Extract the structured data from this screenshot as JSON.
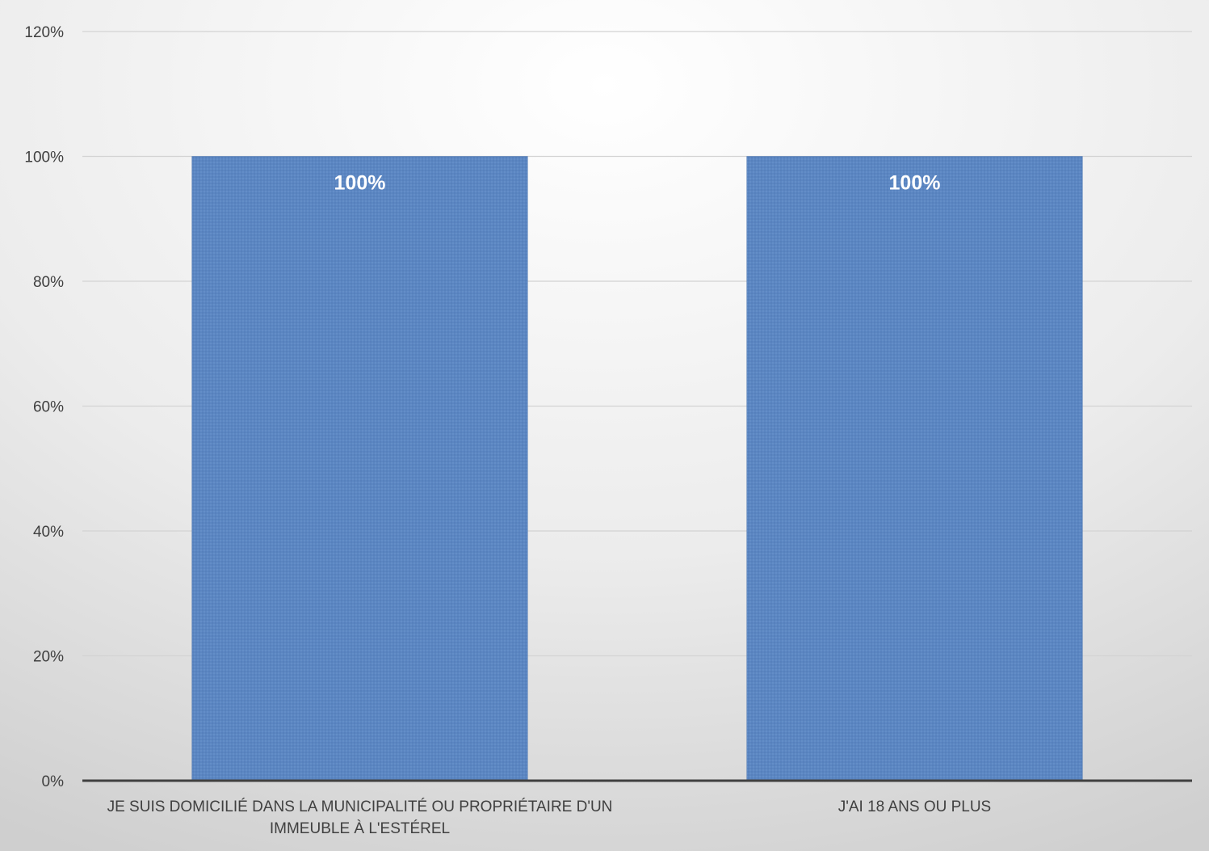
{
  "chart_data": {
    "type": "bar",
    "categories": [
      [
        "JE SUIS DOMICILIÉ DANS LA MUNICIPALITÉ OU PROPRIÉTAIRE D'UN",
        "IMMEUBLE À L'ESTÉREL"
      ],
      [
        "J'AI 18 ANS OU PLUS"
      ]
    ],
    "values": [
      100,
      100
    ],
    "data_labels": [
      "100%",
      "100%"
    ],
    "title": "",
    "xlabel": "",
    "ylabel": "",
    "ylim": [
      0,
      120
    ],
    "yticks": [
      0,
      20,
      40,
      60,
      80,
      100,
      120
    ],
    "ytick_labels": [
      "0%",
      "20%",
      "40%",
      "60%",
      "80%",
      "100%",
      "120%"
    ],
    "grid": true,
    "legend": "none",
    "colors": {
      "bar": "#5b86c2",
      "bar_edge": "#4f78b3",
      "gridline": "#d3d3d3",
      "axis": "#404040",
      "bg_light": "#ffffff",
      "bg_dark": "#d0d0d0"
    }
  }
}
